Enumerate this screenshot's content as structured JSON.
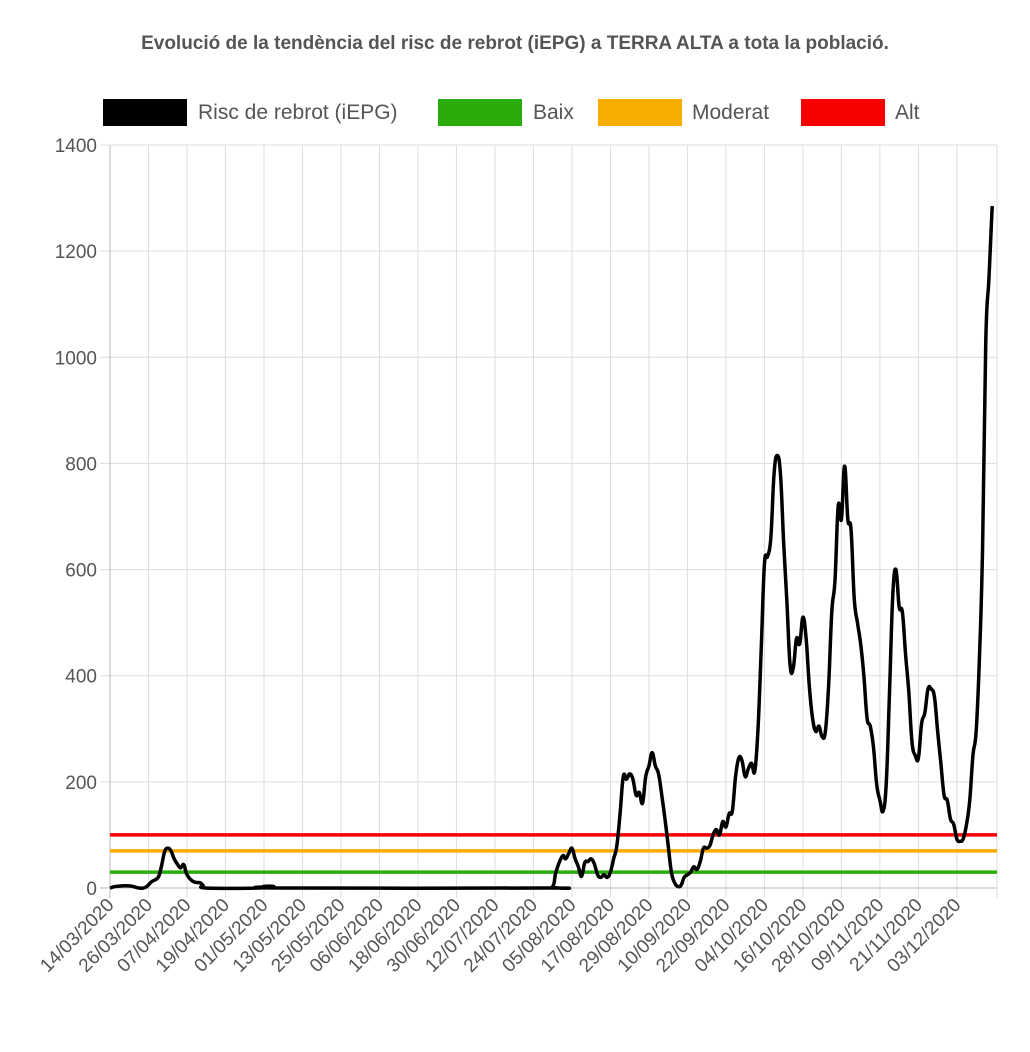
{
  "chart_data": {
    "type": "line",
    "title": "Evolució de la tendència del risc de rebrot (iEPG) a TERRA ALTA a tota la població.",
    "xlabel": "",
    "ylabel": "",
    "ylim": [
      0,
      1400
    ],
    "yticks": [
      0,
      200,
      400,
      600,
      800,
      1000,
      1200,
      1400
    ],
    "grid": true,
    "legend_position": "top",
    "x_tick_labels": [
      "14/03/2020",
      "26/03/2020",
      "07/04/2020",
      "19/04/2020",
      "01/05/2020",
      "13/05/2020",
      "25/05/2020",
      "06/06/2020",
      "18/06/2020",
      "30/06/2020",
      "12/07/2020",
      "24/07/2020",
      "05/08/2020",
      "17/08/2020",
      "29/08/2020",
      "10/09/2020",
      "22/09/2020",
      "04/10/2020",
      "16/10/2020",
      "28/10/2020",
      "09/11/2020",
      "21/11/2020",
      "03/12/2020"
    ],
    "series": [
      {
        "name": "Risc de rebrot (iEPG)",
        "color": "#000000",
        "points": [
          [
            "14/03/2020",
            0
          ],
          [
            "16/03/2020",
            3
          ],
          [
            "20/03/2020",
            4
          ],
          [
            "23/03/2020",
            0
          ],
          [
            "25/03/2020",
            1
          ],
          [
            "27/03/2020",
            12
          ],
          [
            "29/03/2020",
            20
          ],
          [
            "30/03/2020",
            40
          ],
          [
            "31/03/2020",
            68
          ],
          [
            "01/04/2020",
            75
          ],
          [
            "02/04/2020",
            70
          ],
          [
            "03/04/2020",
            55
          ],
          [
            "04/04/2020",
            45
          ],
          [
            "05/04/2020",
            38
          ],
          [
            "06/04/2020",
            44
          ],
          [
            "07/04/2020",
            25
          ],
          [
            "09/04/2020",
            12
          ],
          [
            "11/04/2020",
            10
          ],
          [
            "12/04/2020",
            5
          ],
          [
            "13/04/2020",
            0
          ],
          [
            "29/04/2020",
            0
          ],
          [
            "01/05/2020",
            3
          ],
          [
            "04/05/2020",
            3
          ],
          [
            "06/05/2020",
            0
          ],
          [
            "27/07/2020",
            0
          ],
          [
            "30/07/2020",
            3
          ],
          [
            "31/07/2020",
            30
          ],
          [
            "02/08/2020",
            60
          ],
          [
            "03/08/2020",
            55
          ],
          [
            "04/08/2020",
            65
          ],
          [
            "05/08/2020",
            75
          ],
          [
            "06/08/2020",
            55
          ],
          [
            "07/08/2020",
            40
          ],
          [
            "08/08/2020",
            22
          ],
          [
            "09/08/2020",
            48
          ],
          [
            "10/08/2020",
            50
          ],
          [
            "11/08/2020",
            55
          ],
          [
            "12/08/2020",
            45
          ],
          [
            "13/08/2020",
            25
          ],
          [
            "14/08/2020",
            20
          ],
          [
            "15/08/2020",
            25
          ],
          [
            "16/08/2020",
            20
          ],
          [
            "17/08/2020",
            30
          ],
          [
            "18/08/2020",
            55
          ],
          [
            "19/08/2020",
            80
          ],
          [
            "20/08/2020",
            140
          ],
          [
            "21/08/2020",
            210
          ],
          [
            "22/08/2020",
            205
          ],
          [
            "23/08/2020",
            215
          ],
          [
            "24/08/2020",
            205
          ],
          [
            "25/08/2020",
            175
          ],
          [
            "26/08/2020",
            180
          ],
          [
            "27/08/2020",
            160
          ],
          [
            "28/08/2020",
            210
          ],
          [
            "29/08/2020",
            230
          ],
          [
            "30/08/2020",
            255
          ],
          [
            "31/08/2020",
            230
          ],
          [
            "01/09/2020",
            215
          ],
          [
            "02/09/2020",
            175
          ],
          [
            "03/09/2020",
            130
          ],
          [
            "04/09/2020",
            80
          ],
          [
            "05/09/2020",
            30
          ],
          [
            "06/09/2020",
            10
          ],
          [
            "07/09/2020",
            3
          ],
          [
            "08/09/2020",
            5
          ],
          [
            "09/09/2020",
            20
          ],
          [
            "10/09/2020",
            25
          ],
          [
            "11/09/2020",
            30
          ],
          [
            "12/09/2020",
            40
          ],
          [
            "13/09/2020",
            35
          ],
          [
            "14/09/2020",
            50
          ],
          [
            "15/09/2020",
            75
          ],
          [
            "16/09/2020",
            75
          ],
          [
            "17/09/2020",
            80
          ],
          [
            "18/09/2020",
            100
          ],
          [
            "19/09/2020",
            110
          ],
          [
            "20/09/2020",
            100
          ],
          [
            "21/09/2020",
            125
          ],
          [
            "22/09/2020",
            115
          ],
          [
            "23/09/2020",
            140
          ],
          [
            "24/09/2020",
            145
          ],
          [
            "25/09/2020",
            210
          ],
          [
            "26/09/2020",
            245
          ],
          [
            "27/09/2020",
            240
          ],
          [
            "28/09/2020",
            210
          ],
          [
            "29/09/2020",
            225
          ],
          [
            "30/09/2020",
            235
          ],
          [
            "01/10/2020",
            220
          ],
          [
            "02/10/2020",
            300
          ],
          [
            "03/10/2020",
            450
          ],
          [
            "04/10/2020",
            610
          ],
          [
            "05/10/2020",
            625
          ],
          [
            "06/10/2020",
            660
          ],
          [
            "07/10/2020",
            780
          ],
          [
            "08/10/2020",
            815
          ],
          [
            "09/10/2020",
            780
          ],
          [
            "10/10/2020",
            650
          ],
          [
            "11/10/2020",
            540
          ],
          [
            "12/10/2020",
            420
          ],
          [
            "13/10/2020",
            415
          ],
          [
            "14/10/2020",
            470
          ],
          [
            "15/10/2020",
            460
          ],
          [
            "16/10/2020",
            510
          ],
          [
            "17/10/2020",
            470
          ],
          [
            "18/10/2020",
            380
          ],
          [
            "19/10/2020",
            320
          ],
          [
            "20/10/2020",
            295
          ],
          [
            "21/10/2020",
            305
          ],
          [
            "22/10/2020",
            285
          ],
          [
            "23/10/2020",
            295
          ],
          [
            "24/10/2020",
            380
          ],
          [
            "25/10/2020",
            520
          ],
          [
            "26/10/2020",
            580
          ],
          [
            "27/10/2020",
            720
          ],
          [
            "28/10/2020",
            695
          ],
          [
            "29/10/2020",
            795
          ],
          [
            "30/10/2020",
            695
          ],
          [
            "31/10/2020",
            675
          ],
          [
            "01/11/2020",
            545
          ],
          [
            "02/11/2020",
            500
          ],
          [
            "03/11/2020",
            460
          ],
          [
            "04/11/2020",
            400
          ],
          [
            "05/11/2020",
            320
          ],
          [
            "06/11/2020",
            305
          ],
          [
            "07/11/2020",
            265
          ],
          [
            "08/11/2020",
            195
          ],
          [
            "09/11/2020",
            165
          ],
          [
            "10/11/2020",
            145
          ],
          [
            "11/11/2020",
            200
          ],
          [
            "12/11/2020",
            370
          ],
          [
            "13/11/2020",
            550
          ],
          [
            "14/11/2020",
            600
          ],
          [
            "15/11/2020",
            530
          ],
          [
            "16/11/2020",
            520
          ],
          [
            "17/11/2020",
            440
          ],
          [
            "18/11/2020",
            370
          ],
          [
            "19/11/2020",
            275
          ],
          [
            "20/11/2020",
            250
          ],
          [
            "21/11/2020",
            245
          ],
          [
            "22/11/2020",
            310
          ],
          [
            "23/11/2020",
            330
          ],
          [
            "24/11/2020",
            375
          ],
          [
            "25/11/2020",
            375
          ],
          [
            "26/11/2020",
            360
          ],
          [
            "27/11/2020",
            295
          ],
          [
            "28/11/2020",
            235
          ],
          [
            "29/11/2020",
            175
          ],
          [
            "30/11/2020",
            165
          ],
          [
            "01/12/2020",
            130
          ],
          [
            "02/12/2020",
            120
          ],
          [
            "03/12/2020",
            92
          ],
          [
            "04/12/2020",
            88
          ],
          [
            "05/12/2020",
            93
          ],
          [
            "06/12/2020",
            120
          ],
          [
            "07/12/2020",
            165
          ],
          [
            "08/12/2020",
            250
          ],
          [
            "09/12/2020",
            295
          ],
          [
            "10/12/2020",
            430
          ],
          [
            "11/12/2020",
            640
          ],
          [
            "12/12/2020",
            1030
          ],
          [
            "13/12/2020",
            1150
          ],
          [
            "14/12/2020",
            1285
          ]
        ]
      },
      {
        "name": "Baix",
        "color": "#2AAD0B",
        "constant": 30
      },
      {
        "name": "Moderat",
        "color": "#F9AC00",
        "constant": 70
      },
      {
        "name": "Alt",
        "color": "#F60000",
        "constant": 100
      }
    ]
  }
}
